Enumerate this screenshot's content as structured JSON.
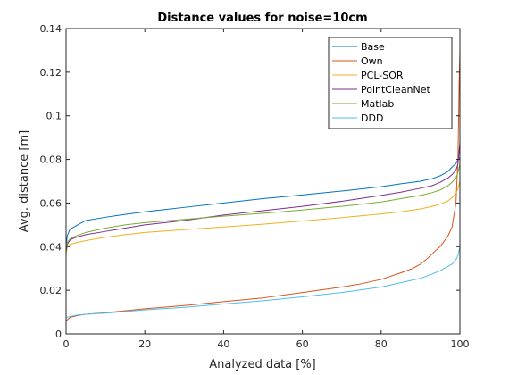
{
  "chart_data": {
    "type": "line",
    "title": "Distance values for noise=10cm",
    "xlabel": "Analyzed data [%]",
    "ylabel": "Avg. distance [m]",
    "xlim": [
      0,
      100
    ],
    "ylim": [
      0,
      0.14
    ],
    "xticks": [
      "0",
      "20",
      "40",
      "60",
      "80",
      "100"
    ],
    "yticks": [
      "0",
      "0.02",
      "0.04",
      "0.06",
      "0.08",
      "0.1",
      "0.12",
      "0.14"
    ],
    "grid": false,
    "legend_position": "top-right",
    "series": [
      {
        "name": "Base",
        "color": "#0072BD",
        "x": [
          0,
          0.3,
          1,
          2,
          3,
          5,
          10,
          15,
          20,
          25,
          30,
          40,
          50,
          60,
          70,
          80,
          85,
          90,
          93,
          95,
          97,
          98,
          99,
          99.5,
          100
        ],
        "y": [
          0.04,
          0.045,
          0.048,
          0.049,
          0.05,
          0.052,
          0.0535,
          0.0548,
          0.056,
          0.057,
          0.058,
          0.06,
          0.062,
          0.0637,
          0.0655,
          0.0675,
          0.0688,
          0.07,
          0.0712,
          0.0725,
          0.0745,
          0.0765,
          0.078,
          0.08,
          0.081
        ]
      },
      {
        "name": "Own",
        "color": "#D95319",
        "x": [
          0,
          1,
          3,
          5,
          10,
          20,
          30,
          40,
          50,
          60,
          70,
          75,
          80,
          85,
          88,
          90,
          92,
          94,
          95,
          96,
          97,
          98,
          99,
          99.5,
          99.8,
          100
        ],
        "y": [
          0.006,
          0.0075,
          0.0085,
          0.009,
          0.0097,
          0.0115,
          0.013,
          0.0148,
          0.0165,
          0.019,
          0.0215,
          0.023,
          0.025,
          0.028,
          0.03,
          0.032,
          0.035,
          0.0385,
          0.04,
          0.0425,
          0.045,
          0.049,
          0.06,
          0.08,
          0.115,
          0.13
        ]
      },
      {
        "name": "PCL-SOR",
        "color": "#EDB120",
        "x": [
          0,
          0.3,
          1,
          2,
          3,
          5,
          10,
          15,
          20,
          30,
          40,
          50,
          60,
          70,
          80,
          85,
          90,
          93,
          95,
          97,
          98,
          99,
          99.5,
          100
        ],
        "y": [
          0.036,
          0.04,
          0.041,
          0.0415,
          0.042,
          0.0428,
          0.0443,
          0.0455,
          0.0465,
          0.0478,
          0.049,
          0.0503,
          0.0518,
          0.0533,
          0.055,
          0.056,
          0.0573,
          0.0585,
          0.0595,
          0.061,
          0.0625,
          0.0645,
          0.0665,
          0.07
        ]
      },
      {
        "name": "PointCleanNet",
        "color": "#7E2F8E",
        "x": [
          0,
          0.3,
          1,
          2,
          3,
          5,
          10,
          15,
          20,
          30,
          40,
          50,
          60,
          70,
          80,
          85,
          90,
          93,
          95,
          97,
          98,
          99,
          99.5,
          100
        ],
        "y": [
          0.038,
          0.041,
          0.043,
          0.044,
          0.0445,
          0.0455,
          0.047,
          0.0485,
          0.05,
          0.052,
          0.0545,
          0.0565,
          0.0585,
          0.0608,
          0.0635,
          0.065,
          0.0668,
          0.068,
          0.0695,
          0.0715,
          0.073,
          0.075,
          0.078,
          0.088
        ]
      },
      {
        "name": "Matlab",
        "color": "#77AC30",
        "x": [
          0,
          0.3,
          1,
          2,
          3,
          5,
          10,
          15,
          20,
          30,
          40,
          50,
          60,
          70,
          80,
          85,
          90,
          93,
          95,
          97,
          98,
          99,
          99.5,
          100
        ],
        "y": [
          0.039,
          0.042,
          0.0435,
          0.0445,
          0.0452,
          0.0465,
          0.0485,
          0.05,
          0.051,
          0.0525,
          0.054,
          0.0553,
          0.0568,
          0.0585,
          0.0605,
          0.062,
          0.0635,
          0.0648,
          0.066,
          0.068,
          0.0695,
          0.0715,
          0.074,
          0.078
        ]
      },
      {
        "name": "DDD",
        "color": "#4DBEEE",
        "x": [
          0,
          1,
          3,
          5,
          10,
          20,
          30,
          40,
          50,
          60,
          70,
          80,
          85,
          90,
          93,
          95,
          96,
          97,
          98,
          99,
          99.5,
          100
        ],
        "y": [
          0.0075,
          0.008,
          0.0087,
          0.009,
          0.0095,
          0.011,
          0.0122,
          0.0137,
          0.0152,
          0.017,
          0.019,
          0.0215,
          0.0235,
          0.0255,
          0.0275,
          0.029,
          0.03,
          0.031,
          0.032,
          0.034,
          0.036,
          0.04
        ]
      }
    ]
  }
}
